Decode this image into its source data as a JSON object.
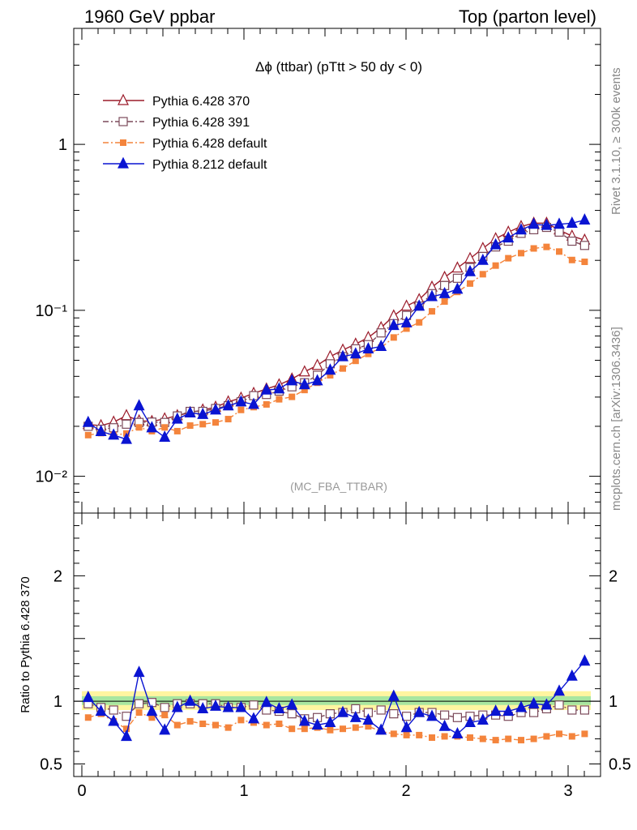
{
  "header": {
    "left": "1960 GeV ppbar",
    "right": "Top (parton level)"
  },
  "side_labels": {
    "rivet": "Rivet 3.1.10, ≥ 300k events",
    "mcplots": "mcplots.cern.ch [arXiv:1306.3436]"
  },
  "chart_data": [
    {
      "type": "line",
      "title": "Δϕ (ttbar) (pTtt > 50 dy < 0)",
      "analysis_label": "(MC_FBA_TTBAR)",
      "yscale": "log",
      "xlim": [
        -0.05,
        3.2
      ],
      "ylim": [
        0.006,
        5
      ],
      "y_tick_labels": [
        "10⁻²",
        "10⁻¹",
        "1"
      ],
      "y_ticks": [
        0.01,
        0.1,
        1
      ],
      "grid": false,
      "legend_position": "top-left",
      "x": [
        0.039,
        0.118,
        0.196,
        0.275,
        0.353,
        0.432,
        0.511,
        0.589,
        0.668,
        0.746,
        0.825,
        0.903,
        0.982,
        1.06,
        1.139,
        1.217,
        1.296,
        1.374,
        1.453,
        1.532,
        1.61,
        1.689,
        1.767,
        1.846,
        1.924,
        2.003,
        2.081,
        2.16,
        2.238,
        2.317,
        2.395,
        2.474,
        2.553,
        2.631,
        2.71,
        2.788,
        2.867,
        2.945,
        3.024,
        3.102
      ],
      "series": [
        {
          "name": "Pythia 6.428 370",
          "color": "#9b1b2a",
          "marker": "open-triangle",
          "line": "solid",
          "values": [
            0.0205,
            0.0202,
            0.0212,
            0.0232,
            0.0216,
            0.0214,
            0.0222,
            0.0232,
            0.0242,
            0.0251,
            0.0261,
            0.0281,
            0.0296,
            0.0316,
            0.0336,
            0.0356,
            0.0386,
            0.0426,
            0.0466,
            0.0526,
            0.0576,
            0.0626,
            0.0686,
            0.0786,
            0.0926,
            0.106,
            0.116,
            0.138,
            0.158,
            0.18,
            0.205,
            0.236,
            0.27,
            0.296,
            0.32,
            0.335,
            0.335,
            0.305,
            0.28,
            0.265
          ]
        },
        {
          "name": "Pythia 6.428 391",
          "color": "#7b4a5a",
          "marker": "open-square",
          "line": "dashdot",
          "values": [
            0.02,
            0.0192,
            0.0196,
            0.0206,
            0.0211,
            0.0212,
            0.0211,
            0.0231,
            0.0246,
            0.0246,
            0.0256,
            0.0266,
            0.0281,
            0.0306,
            0.0311,
            0.0326,
            0.0346,
            0.0366,
            0.0406,
            0.0476,
            0.0526,
            0.0586,
            0.0621,
            0.0731,
            0.0831,
            0.0931,
            0.106,
            0.126,
            0.141,
            0.156,
            0.181,
            0.211,
            0.241,
            0.261,
            0.291,
            0.306,
            0.316,
            0.296,
            0.261,
            0.246
          ]
        },
        {
          "name": "Pythia 6.428 default",
          "color": "#f4843c",
          "marker": "filled-square",
          "line": "dashdot",
          "values": [
            0.0177,
            0.0182,
            0.0177,
            0.0181,
            0.0197,
            0.0187,
            0.0197,
            0.0187,
            0.0202,
            0.0206,
            0.0211,
            0.0221,
            0.0251,
            0.0261,
            0.0271,
            0.0291,
            0.0301,
            0.0331,
            0.0366,
            0.0406,
            0.0446,
            0.0496,
            0.0546,
            0.0596,
            0.0686,
            0.0776,
            0.0846,
            0.0986,
            0.113,
            0.129,
            0.145,
            0.165,
            0.186,
            0.206,
            0.221,
            0.236,
            0.241,
            0.226,
            0.201,
            0.196
          ]
        },
        {
          "name": "Pythia 8.212 default",
          "color": "#0a14d2",
          "marker": "filled-triangle",
          "line": "solid",
          "values": [
            0.0211,
            0.0186,
            0.0177,
            0.0167,
            0.0266,
            0.0196,
            0.0172,
            0.0221,
            0.0241,
            0.0236,
            0.0251,
            0.0266,
            0.0281,
            0.0271,
            0.0331,
            0.0336,
            0.0376,
            0.0356,
            0.0376,
            0.0436,
            0.0526,
            0.0546,
            0.0586,
            0.0606,
            0.0811,
            0.0841,
            0.106,
            0.121,
            0.126,
            0.134,
            0.171,
            0.2,
            0.248,
            0.273,
            0.305,
            0.33,
            0.325,
            0.33,
            0.335,
            0.35
          ]
        }
      ]
    },
    {
      "type": "line",
      "ylabel": "Ratio to Pythia 6.428 370",
      "reference": "Pythia 6.428 370",
      "xlim": [
        -0.05,
        3.2
      ],
      "ylim": [
        0.4,
        2.5
      ],
      "x_ticks": [
        0,
        1,
        2,
        3
      ],
      "x_tick_labels": [
        "0",
        "1",
        "2",
        "3"
      ],
      "y_ticks": [
        0.5,
        1,
        2
      ],
      "y_tick_labels": [
        "0.5",
        "1",
        "2"
      ],
      "ref_band_colors": [
        "#fff5a0",
        "#a8e6a0"
      ],
      "series": [
        {
          "name": "Pythia 6.428 391",
          "values": [
            0.98,
            0.95,
            0.93,
            0.88,
            0.98,
            0.99,
            0.95,
            0.98,
            0.98,
            0.98,
            0.98,
            0.95,
            0.95,
            0.97,
            0.93,
            0.92,
            0.9,
            0.86,
            0.87,
            0.9,
            0.91,
            0.94,
            0.91,
            0.93,
            0.9,
            0.88,
            0.91,
            0.91,
            0.89,
            0.87,
            0.88,
            0.89,
            0.89,
            0.88,
            0.91,
            0.91,
            0.94,
            0.97,
            0.93,
            0.93
          ]
        },
        {
          "name": "Pythia 6.428 default",
          "values": [
            0.87,
            0.9,
            0.84,
            0.78,
            0.91,
            0.87,
            0.89,
            0.81,
            0.84,
            0.82,
            0.81,
            0.79,
            0.85,
            0.83,
            0.81,
            0.82,
            0.78,
            0.78,
            0.79,
            0.77,
            0.78,
            0.79,
            0.8,
            0.76,
            0.74,
            0.73,
            0.73,
            0.71,
            0.72,
            0.72,
            0.71,
            0.7,
            0.69,
            0.7,
            0.69,
            0.7,
            0.72,
            0.74,
            0.72,
            0.74
          ]
        },
        {
          "name": "Pythia 8.212 default",
          "values": [
            1.03,
            0.92,
            0.84,
            0.72,
            1.23,
            0.92,
            0.77,
            0.95,
            1.0,
            0.94,
            0.96,
            0.95,
            0.95,
            0.86,
            0.99,
            0.94,
            0.97,
            0.84,
            0.81,
            0.83,
            0.91,
            0.87,
            0.85,
            0.77,
            1.04,
            0.79,
            0.91,
            0.88,
            0.8,
            0.74,
            0.83,
            0.85,
            0.92,
            0.92,
            0.95,
            0.98,
            0.97,
            1.08,
            1.2,
            1.32
          ]
        }
      ]
    }
  ]
}
